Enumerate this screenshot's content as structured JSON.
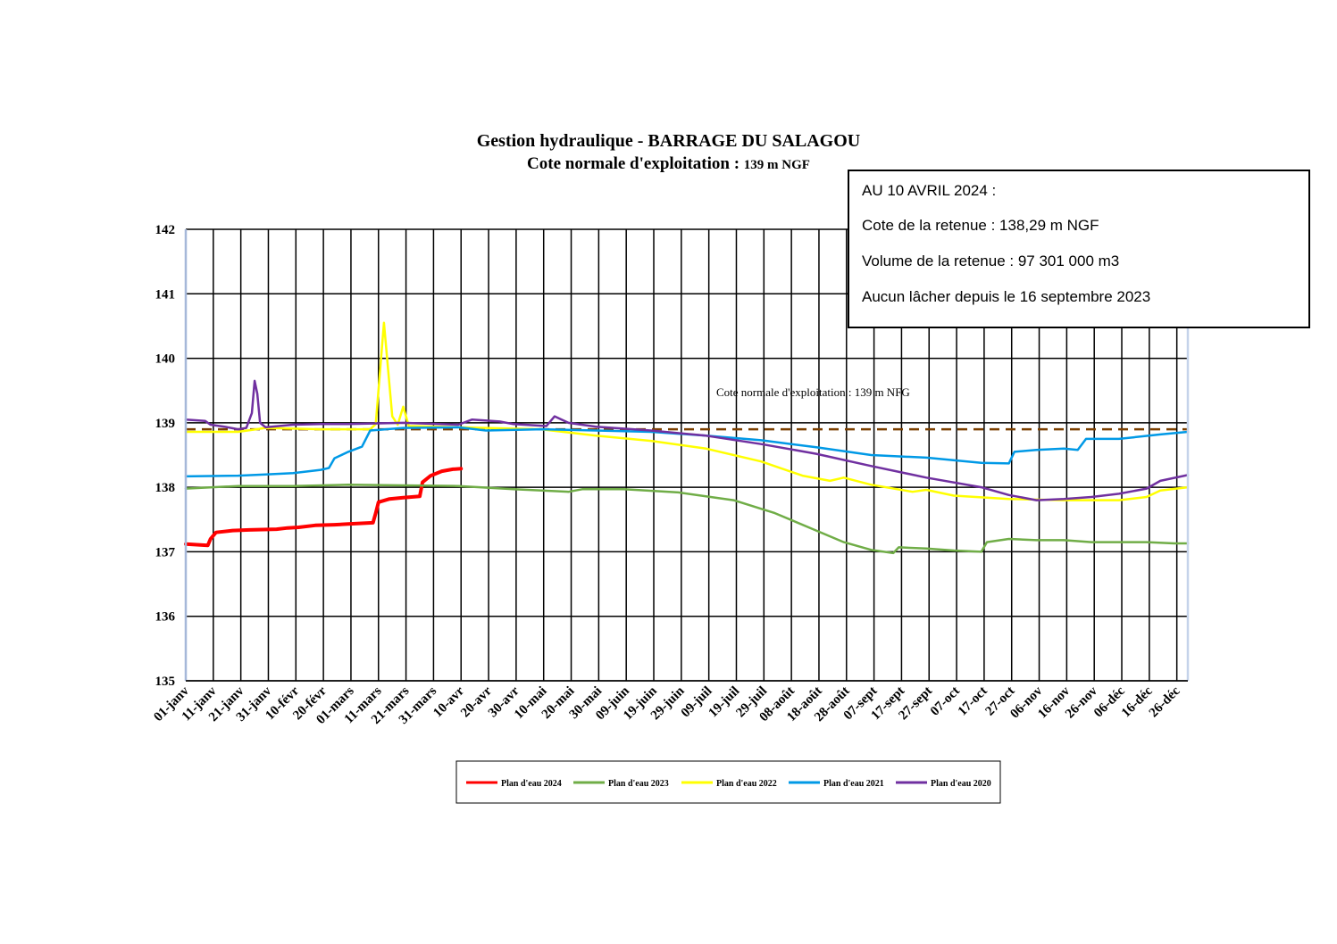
{
  "title_line1": "Gestion hydraulique - BARRAGE DU SALAGOU",
  "title_line2_main": "Cote normale d'exploitation : ",
  "title_line2_value": "139 m NGF",
  "info": {
    "date": "AU 10 AVRIL 2024 :",
    "cote": "Cote de la retenue : 138,29 m NGF",
    "volume": "Volume de la retenue : 97 301 000 m3",
    "lacher": "Aucun lâcher depuis le 16 septembre 2023"
  },
  "chart_data": {
    "type": "line",
    "ylim": [
      135,
      142
    ],
    "yticks": [
      135,
      136,
      137,
      138,
      139,
      140,
      141,
      142
    ],
    "xlim_days": [
      1,
      365
    ],
    "x_tick_labels": [
      "01-janv",
      "11-janv",
      "21-janv",
      "31-janv",
      "10-févr",
      "20-févr",
      "01-mars",
      "11-mars",
      "21-mars",
      "31-mars",
      "10-avr",
      "20-avr",
      "30-avr",
      "10-mai",
      "20-mai",
      "30-mai",
      "09-juin",
      "19-juin",
      "29-juin",
      "09-juil",
      "19-juil",
      "29-juil",
      "08-août",
      "18-août",
      "28-août",
      "07-sept",
      "17-sept",
      "27-sept",
      "07-oct",
      "17-oct",
      "27-oct",
      "06-nov",
      "16-nov",
      "26-nov",
      "06-déc",
      "16-déc",
      "26-déc"
    ],
    "reference_line": {
      "value": 138.9,
      "label": "Cote normale d'exploitation : 139 m NFG",
      "color": "#7b3f00"
    },
    "grid": true,
    "legend_position": "bottom",
    "series": [
      {
        "name": "Plan d'eau 2024",
        "color": "#ff0000",
        "width": 4,
        "points": [
          [
            1,
            137.12
          ],
          [
            9,
            137.1
          ],
          [
            10,
            137.2
          ],
          [
            12,
            137.3
          ],
          [
            18,
            137.33
          ],
          [
            24,
            137.34
          ],
          [
            34,
            137.35
          ],
          [
            38,
            137.37
          ],
          [
            42,
            137.38
          ],
          [
            48,
            137.41
          ],
          [
            55,
            137.42
          ],
          [
            60,
            137.43
          ],
          [
            69,
            137.45
          ],
          [
            70,
            137.6
          ],
          [
            71,
            137.77
          ],
          [
            75,
            137.82
          ],
          [
            80,
            137.84
          ],
          [
            86,
            137.86
          ],
          [
            87,
            138.08
          ],
          [
            90,
            138.18
          ],
          [
            94,
            138.25
          ],
          [
            98,
            138.28
          ],
          [
            101,
            138.29
          ]
        ]
      },
      {
        "name": "Plan d'eau 2023",
        "color": "#70ad47",
        "width": 2.5,
        "points": [
          [
            1,
            137.98
          ],
          [
            20,
            138.02
          ],
          [
            40,
            138.02
          ],
          [
            60,
            138.04
          ],
          [
            80,
            138.03
          ],
          [
            100,
            138.02
          ],
          [
            120,
            137.97
          ],
          [
            140,
            137.93
          ],
          [
            145,
            137.97
          ],
          [
            160,
            137.97
          ],
          [
            180,
            137.92
          ],
          [
            200,
            137.8
          ],
          [
            215,
            137.6
          ],
          [
            230,
            137.33
          ],
          [
            240,
            137.15
          ],
          [
            250,
            137.03
          ],
          [
            258,
            136.98
          ],
          [
            260,
            137.07
          ],
          [
            270,
            137.05
          ],
          [
            280,
            137.02
          ],
          [
            290,
            137.0
          ],
          [
            292,
            137.15
          ],
          [
            300,
            137.2
          ],
          [
            310,
            137.18
          ],
          [
            320,
            137.18
          ],
          [
            330,
            137.15
          ],
          [
            340,
            137.15
          ],
          [
            350,
            137.15
          ],
          [
            360,
            137.13
          ],
          [
            365,
            137.13
          ]
        ]
      },
      {
        "name": "Plan d'eau 2022",
        "color": "#ffff00",
        "width": 2.5,
        "points": [
          [
            1,
            138.86
          ],
          [
            20,
            138.86
          ],
          [
            30,
            138.92
          ],
          [
            50,
            138.9
          ],
          [
            68,
            138.9
          ],
          [
            70,
            138.98
          ],
          [
            73,
            140.55
          ],
          [
            76,
            139.1
          ],
          [
            78,
            138.97
          ],
          [
            80,
            139.25
          ],
          [
            82,
            138.95
          ],
          [
            100,
            138.93
          ],
          [
            110,
            138.92
          ],
          [
            130,
            138.9
          ],
          [
            150,
            138.8
          ],
          [
            170,
            138.72
          ],
          [
            190,
            138.6
          ],
          [
            210,
            138.4
          ],
          [
            225,
            138.18
          ],
          [
            235,
            138.1
          ],
          [
            240,
            138.15
          ],
          [
            250,
            138.04
          ],
          [
            265,
            137.93
          ],
          [
            270,
            137.96
          ],
          [
            280,
            137.87
          ],
          [
            300,
            137.82
          ],
          [
            320,
            137.8
          ],
          [
            340,
            137.8
          ],
          [
            350,
            137.85
          ],
          [
            355,
            137.95
          ],
          [
            365,
            138.0
          ]
        ]
      },
      {
        "name": "Plan d'eau 2021",
        "color": "#0099e6",
        "width": 2.5,
        "points": [
          [
            1,
            138.17
          ],
          [
            20,
            138.18
          ],
          [
            30,
            138.2
          ],
          [
            40,
            138.22
          ],
          [
            50,
            138.27
          ],
          [
            53,
            138.3
          ],
          [
            55,
            138.45
          ],
          [
            60,
            138.55
          ],
          [
            65,
            138.63
          ],
          [
            68,
            138.88
          ],
          [
            80,
            138.92
          ],
          [
            100,
            138.93
          ],
          [
            110,
            138.88
          ],
          [
            130,
            138.9
          ],
          [
            150,
            138.88
          ],
          [
            170,
            138.86
          ],
          [
            190,
            138.8
          ],
          [
            210,
            138.73
          ],
          [
            230,
            138.62
          ],
          [
            250,
            138.5
          ],
          [
            270,
            138.46
          ],
          [
            290,
            138.38
          ],
          [
            300,
            138.37
          ],
          [
            302,
            138.55
          ],
          [
            310,
            138.58
          ],
          [
            320,
            138.6
          ],
          [
            325,
            138.58
          ],
          [
            328,
            138.75
          ],
          [
            340,
            138.75
          ],
          [
            355,
            138.82
          ],
          [
            365,
            138.86
          ]
        ]
      },
      {
        "name": "Plan d'eau 2020",
        "color": "#7030a0",
        "width": 2.5,
        "points": [
          [
            1,
            139.05
          ],
          [
            8,
            139.03
          ],
          [
            10,
            138.97
          ],
          [
            15,
            138.94
          ],
          [
            20,
            138.9
          ],
          [
            23,
            138.92
          ],
          [
            25,
            139.15
          ],
          [
            26,
            139.65
          ],
          [
            27,
            139.45
          ],
          [
            28,
            139.0
          ],
          [
            30,
            138.93
          ],
          [
            40,
            138.97
          ],
          [
            50,
            138.98
          ],
          [
            60,
            138.98
          ],
          [
            80,
            139.0
          ],
          [
            100,
            138.97
          ],
          [
            105,
            139.05
          ],
          [
            115,
            139.02
          ],
          [
            120,
            138.98
          ],
          [
            132,
            138.95
          ],
          [
            135,
            139.1
          ],
          [
            140,
            139.0
          ],
          [
            150,
            138.94
          ],
          [
            170,
            138.88
          ],
          [
            190,
            138.8
          ],
          [
            210,
            138.67
          ],
          [
            230,
            138.52
          ],
          [
            250,
            138.33
          ],
          [
            270,
            138.15
          ],
          [
            290,
            138.0
          ],
          [
            300,
            137.88
          ],
          [
            310,
            137.8
          ],
          [
            320,
            137.82
          ],
          [
            330,
            137.85
          ],
          [
            340,
            137.9
          ],
          [
            350,
            137.98
          ],
          [
            355,
            138.1
          ],
          [
            365,
            138.19
          ]
        ]
      }
    ]
  }
}
